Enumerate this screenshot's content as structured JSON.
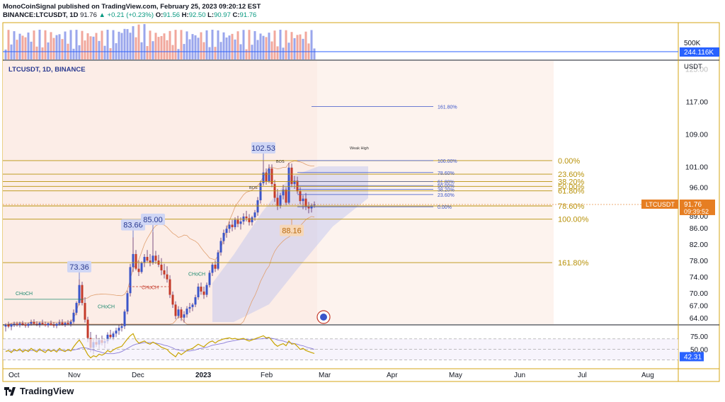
{
  "header": {
    "line1": "MonoCoinSignal published on TradingView.com, February 25, 2023 09:20:12 EST",
    "symbol": "BINANCE:LTCUSDT, 1D",
    "last": "91.76",
    "arrow": "▲",
    "change": "+0.21 (+0.23%)",
    "o_label": "O:",
    "o_val": "91.56",
    "h_label": "H:",
    "h_val": "92.50",
    "l_label": "L:",
    "l_val": "90.97",
    "c_label": "C:",
    "c_val": "91.76"
  },
  "pane_label": "LTCUSDT, 1D, BINANCE",
  "logo_text": "TradingView",
  "colors": {
    "frame": "#d4a514",
    "fib_gold": "#b8920a",
    "fib_blue": "#3b55c9",
    "bull": "#3b55c9",
    "bear": "#c43a2a",
    "wick": "#5a2a6a",
    "rsi": "#c8a400",
    "rsi_ma": "#8a7cd6",
    "price_tag": "#e67e22",
    "volume_tag": "#2962ff",
    "rsi_tag": "#2962ff"
  },
  "chart_data": {
    "type": "candlestick",
    "symbol": "LTCUSDT",
    "exchange": "BINANCE",
    "timeframe": "1D",
    "currency": "USDT",
    "x_labels": [
      "Oct",
      "Nov",
      "Dec",
      "2023",
      "Feb",
      "Mar",
      "Apr",
      "May",
      "Jun",
      "Jul",
      "Aug"
    ],
    "y_ticks": [
      117.0,
      109.0,
      101.0,
      96.0,
      89.0,
      86.0,
      82.0,
      78.0,
      74.0,
      70.0,
      67.0,
      64.0
    ],
    "y_tick_labels": [
      "117.00",
      "109.00",
      "101.00",
      "96.00",
      "89.00",
      "86.00",
      "82.00",
      "78.00",
      "74.00",
      "70.00",
      "67.00",
      "64.00"
    ],
    "y_partial_label": "125.00",
    "y_unit_label": "USDT",
    "last_price": {
      "symbol": "LTCUSDT",
      "price": "91.76",
      "countdown": "09:39:52"
    },
    "volume": {
      "axis_label": "500K",
      "last_label": "244.116K"
    },
    "rsi": {
      "ticks": [
        "75.00",
        "50.00"
      ],
      "last_label": "42.31"
    },
    "price_callouts": [
      "102.53",
      "83.66",
      "85.00",
      "73.36",
      "88.16"
    ],
    "annotations": [
      "CHoCH",
      "CHoCH",
      "CHoCH",
      "CHoCH",
      "BOS",
      "BOS",
      "Weak High"
    ],
    "fib_large": {
      "levels": [
        "0.00%",
        "23.60%",
        "38.20%",
        "50.00%",
        "61.80%",
        "78.60%",
        "100.00%",
        "161.80%"
      ],
      "prices": [
        102.53,
        99.2,
        97.4,
        96.2,
        95.1,
        91.4,
        88.16,
        77.5
      ]
    },
    "fib_small": {
      "levels": [
        "161.80%",
        "100.00%",
        "78.60%",
        "61.80%",
        "50.00%",
        "38.20%",
        "23.60%",
        "0.00%"
      ],
      "prices": [
        115.8,
        102.53,
        99.6,
        97.4,
        96.4,
        95.5,
        94.2,
        91.2
      ]
    },
    "price_series": [
      [
        61.8,
        62.6,
        60.6,
        62.2
      ],
      [
        62.2,
        63.0,
        61.4,
        61.8
      ],
      [
        61.8,
        62.6,
        60.9,
        62.4
      ],
      [
        62.4,
        63.0,
        61.7,
        62.5
      ],
      [
        62.5,
        63.0,
        61.8,
        62.2
      ],
      [
        62.2,
        63.0,
        61.6,
        62.6
      ],
      [
        62.6,
        63.2,
        62.0,
        62.3
      ],
      [
        62.3,
        62.8,
        61.5,
        62.0
      ],
      [
        62.0,
        62.8,
        61.5,
        62.5
      ],
      [
        62.5,
        63.5,
        62.0,
        62.9
      ],
      [
        62.9,
        63.6,
        62.3,
        62.5
      ],
      [
        62.5,
        63.1,
        61.9,
        62.3
      ],
      [
        62.3,
        63.0,
        61.6,
        62.7
      ],
      [
        62.7,
        63.5,
        62.2,
        62.4
      ],
      [
        62.4,
        63.0,
        61.8,
        62.1
      ],
      [
        62.1,
        62.8,
        61.6,
        62.6
      ],
      [
        62.6,
        63.3,
        62.0,
        62.2
      ],
      [
        62.2,
        62.9,
        61.5,
        62.0
      ],
      [
        62.0,
        62.7,
        61.4,
        62.5
      ],
      [
        62.5,
        63.5,
        62.0,
        62.8
      ],
      [
        62.8,
        63.6,
        62.0,
        62.3
      ],
      [
        62.3,
        63.0,
        61.7,
        62.7
      ],
      [
        62.7,
        63.4,
        62.1,
        62.4
      ],
      [
        62.4,
        63.5,
        61.8,
        63.0
      ],
      [
        63.0,
        66.0,
        62.5,
        65.2
      ],
      [
        65.2,
        68.0,
        64.6,
        67.6
      ],
      [
        67.6,
        73.4,
        67.0,
        72.0
      ],
      [
        72.0,
        72.8,
        67.0,
        67.6
      ],
      [
        67.6,
        69.0,
        62.8,
        63.5
      ],
      [
        63.5,
        64.2,
        58.0,
        59.0
      ],
      [
        59.0,
        60.5,
        55.5,
        56.6
      ],
      [
        56.6,
        58.6,
        55.0,
        58.0
      ],
      [
        58.0,
        59.8,
        56.8,
        57.4
      ],
      [
        57.4,
        59.0,
        56.4,
        58.5
      ],
      [
        58.5,
        59.6,
        57.2,
        57.8
      ],
      [
        57.8,
        58.8,
        56.5,
        58.2
      ],
      [
        58.2,
        60.4,
        57.6,
        59.8
      ],
      [
        59.8,
        61.0,
        58.6,
        59.2
      ],
      [
        59.2,
        60.6,
        58.4,
        60.1
      ],
      [
        60.1,
        61.5,
        59.2,
        60.8
      ],
      [
        60.8,
        62.2,
        59.8,
        61.5
      ],
      [
        61.5,
        62.6,
        60.6,
        61.9
      ],
      [
        61.9,
        66.0,
        61.2,
        65.5
      ],
      [
        65.5,
        70.6,
        64.8,
        70.0
      ],
      [
        70.0,
        77.2,
        69.2,
        76.4
      ],
      [
        76.4,
        83.7,
        75.2,
        79.6
      ],
      [
        79.6,
        80.6,
        75.6,
        76.0
      ],
      [
        76.0,
        78.0,
        74.2,
        75.2
      ],
      [
        75.2,
        77.8,
        74.8,
        77.4
      ],
      [
        77.4,
        79.6,
        76.4,
        78.9
      ],
      [
        78.9,
        80.6,
        77.6,
        78.0
      ],
      [
        78.0,
        79.6,
        76.6,
        77.4
      ],
      [
        77.4,
        85.0,
        77.0,
        79.2
      ],
      [
        79.2,
        80.4,
        77.2,
        78.0
      ],
      [
        78.0,
        79.4,
        76.4,
        77.0
      ],
      [
        77.0,
        78.6,
        74.4,
        75.6
      ],
      [
        75.6,
        77.2,
        73.6,
        74.6
      ],
      [
        74.6,
        76.6,
        72.6,
        73.4
      ],
      [
        73.4,
        74.4,
        68.8,
        69.6
      ],
      [
        69.6,
        70.4,
        66.4,
        67.2
      ],
      [
        67.2,
        68.0,
        63.6,
        64.4
      ],
      [
        64.4,
        66.8,
        63.8,
        66.0
      ],
      [
        66.0,
        66.6,
        63.2,
        64.0
      ],
      [
        64.0,
        65.6,
        62.8,
        64.8
      ],
      [
        64.8,
        66.8,
        64.0,
        66.2
      ],
      [
        66.2,
        67.6,
        65.2,
        66.6
      ],
      [
        66.6,
        67.6,
        65.6,
        67.2
      ],
      [
        67.2,
        69.6,
        66.6,
        69.0
      ],
      [
        69.0,
        72.4,
        68.4,
        71.6
      ],
      [
        71.6,
        72.6,
        69.6,
        70.4
      ],
      [
        70.4,
        71.6,
        68.6,
        69.6
      ],
      [
        69.6,
        72.6,
        69.0,
        72.0
      ],
      [
        72.0,
        75.6,
        71.4,
        75.0
      ],
      [
        75.0,
        77.6,
        74.2,
        77.0
      ],
      [
        77.0,
        78.0,
        75.2,
        76.0
      ],
      [
        76.0,
        80.6,
        75.6,
        80.0
      ],
      [
        80.0,
        83.6,
        79.2,
        82.8
      ],
      [
        82.8,
        85.6,
        82.0,
        84.8
      ],
      [
        84.8,
        86.6,
        83.6,
        85.8
      ],
      [
        85.8,
        87.6,
        84.8,
        86.8
      ],
      [
        86.8,
        88.0,
        85.2,
        86.2
      ],
      [
        86.2,
        88.6,
        85.6,
        88.0
      ],
      [
        88.0,
        89.0,
        86.2,
        87.0
      ],
      [
        87.0,
        88.6,
        85.6,
        87.6
      ],
      [
        87.6,
        89.6,
        86.8,
        88.8
      ],
      [
        88.8,
        90.2,
        87.6,
        88.4
      ],
      [
        88.4,
        89.4,
        86.6,
        87.4
      ],
      [
        87.4,
        89.0,
        86.6,
        88.6
      ],
      [
        88.6,
        90.4,
        87.8,
        89.8
      ],
      [
        89.8,
        93.6,
        89.0,
        92.8
      ],
      [
        92.8,
        97.6,
        92.0,
        97.0
      ],
      [
        97.0,
        102.5,
        96.4,
        99.6
      ],
      [
        99.6,
        100.6,
        96.6,
        97.4
      ],
      [
        97.4,
        101.6,
        97.0,
        100.6
      ],
      [
        100.6,
        101.6,
        96.0,
        96.8
      ],
      [
        96.8,
        97.8,
        92.4,
        93.4
      ],
      [
        93.4,
        95.6,
        90.4,
        91.4
      ],
      [
        91.4,
        94.6,
        90.8,
        94.0
      ],
      [
        94.0,
        96.6,
        93.0,
        95.4
      ],
      [
        95.4,
        96.0,
        91.6,
        92.2
      ],
      [
        92.2,
        102.0,
        91.8,
        100.8
      ],
      [
        100.8,
        101.8,
        96.0,
        96.8
      ],
      [
        96.8,
        98.8,
        95.6,
        97.6
      ],
      [
        97.6,
        98.6,
        94.4,
        95.0
      ],
      [
        95.0,
        96.0,
        91.8,
        92.6
      ],
      [
        92.6,
        94.0,
        90.6,
        93.2
      ],
      [
        93.2,
        94.6,
        90.4,
        91.2
      ],
      [
        91.2,
        92.4,
        89.6,
        90.8
      ],
      [
        90.8,
        92.0,
        89.8,
        91.56
      ],
      [
        91.56,
        92.5,
        90.97,
        91.76
      ]
    ],
    "rsi_series": [
      46,
      48,
      44,
      50,
      47,
      51,
      45,
      49,
      46,
      52,
      48,
      45,
      51,
      47,
      44,
      50,
      46,
      49,
      45,
      52,
      48,
      46,
      50,
      47,
      55,
      62,
      68,
      60,
      50,
      40,
      34,
      38,
      36,
      41,
      39,
      42,
      48,
      45,
      49,
      52,
      54,
      56,
      63,
      70,
      76,
      80,
      68,
      62,
      64,
      66,
      62,
      60,
      64,
      61,
      58,
      54,
      52,
      50,
      44,
      40,
      36,
      44,
      40,
      44,
      48,
      50,
      52,
      56,
      60,
      57,
      55,
      60,
      64,
      66,
      62,
      66,
      68,
      70,
      71,
      72,
      70,
      71,
      69,
      70,
      71,
      68,
      66,
      68,
      70,
      72,
      74,
      76,
      72,
      73,
      67,
      60,
      56,
      59,
      61,
      57,
      66,
      60,
      61,
      56,
      50,
      52,
      48,
      46,
      44,
      42.31
    ],
    "rsi_ma_series": [
      47,
      47,
      47,
      47,
      48,
      48,
      48,
      48,
      48,
      48,
      48,
      48,
      48,
      48,
      48,
      48,
      48,
      48,
      48,
      48,
      48,
      48,
      48,
      48,
      49,
      50,
      52,
      53,
      53,
      52,
      50,
      49,
      47,
      46,
      44,
      43,
      42,
      42,
      42,
      43,
      44,
      46,
      49,
      52,
      55,
      58,
      60,
      61,
      62,
      63,
      63,
      63,
      63,
      62,
      61,
      60,
      58,
      57,
      55,
      53,
      50,
      49,
      48,
      47,
      47,
      47,
      48,
      49,
      51,
      52,
      53,
      54,
      56,
      58,
      59,
      60,
      61,
      62,
      64,
      65,
      66,
      67,
      68,
      69,
      69,
      69,
      69,
      69,
      69,
      70,
      70,
      71,
      71,
      72,
      71,
      70,
      68,
      67,
      66,
      64,
      63,
      62,
      61,
      60,
      58,
      57,
      55,
      53,
      52,
      50
    ]
  }
}
